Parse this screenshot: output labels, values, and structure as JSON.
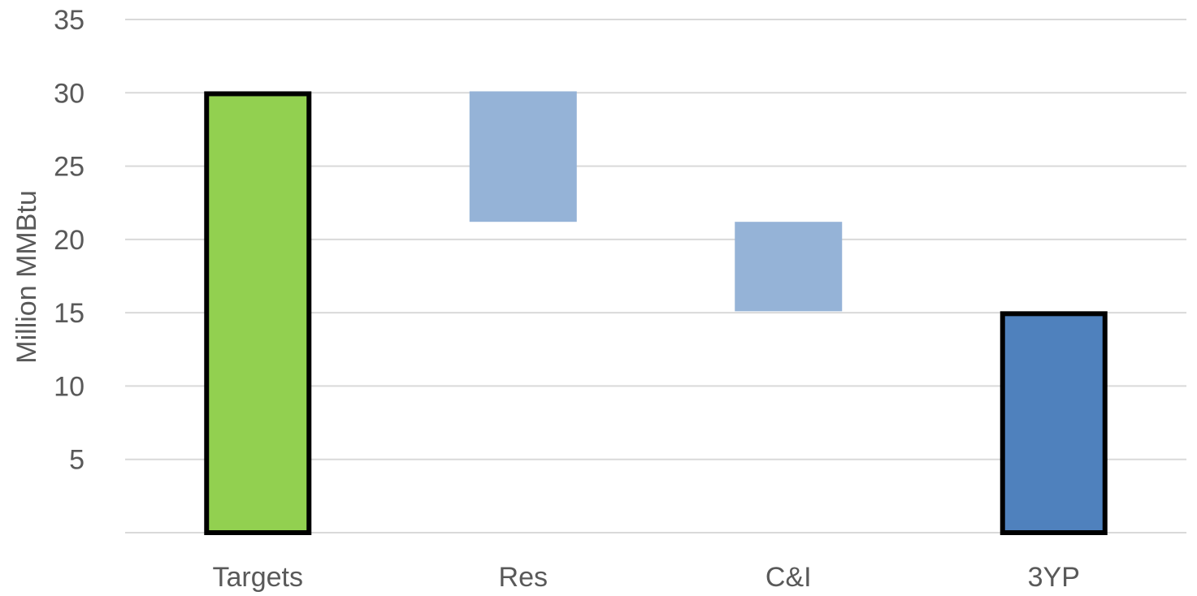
{
  "chart_data": {
    "type": "bar",
    "subtype": "waterfall",
    "title": "",
    "xlabel": "",
    "ylabel": "Million MMBtu",
    "ylim": [
      0,
      35
    ],
    "yticks": [
      5,
      10,
      15,
      20,
      25,
      30,
      35
    ],
    "grid": true,
    "legend": "none",
    "categories": [
      "Targets",
      "Res",
      "C&I",
      "3YP"
    ],
    "bars": [
      {
        "category": "Targets",
        "start": 0,
        "end": 30.1,
        "color": "#92d050",
        "outlined": true
      },
      {
        "category": "Res",
        "start": 21.2,
        "end": 30.1,
        "color": "#95b3d7",
        "outlined": false
      },
      {
        "category": "C&I",
        "start": 15.1,
        "end": 21.2,
        "color": "#95b3d7",
        "outlined": false
      },
      {
        "category": "3YP",
        "start": 0,
        "end": 15.1,
        "color": "#4f81bd",
        "outlined": true
      }
    ]
  }
}
